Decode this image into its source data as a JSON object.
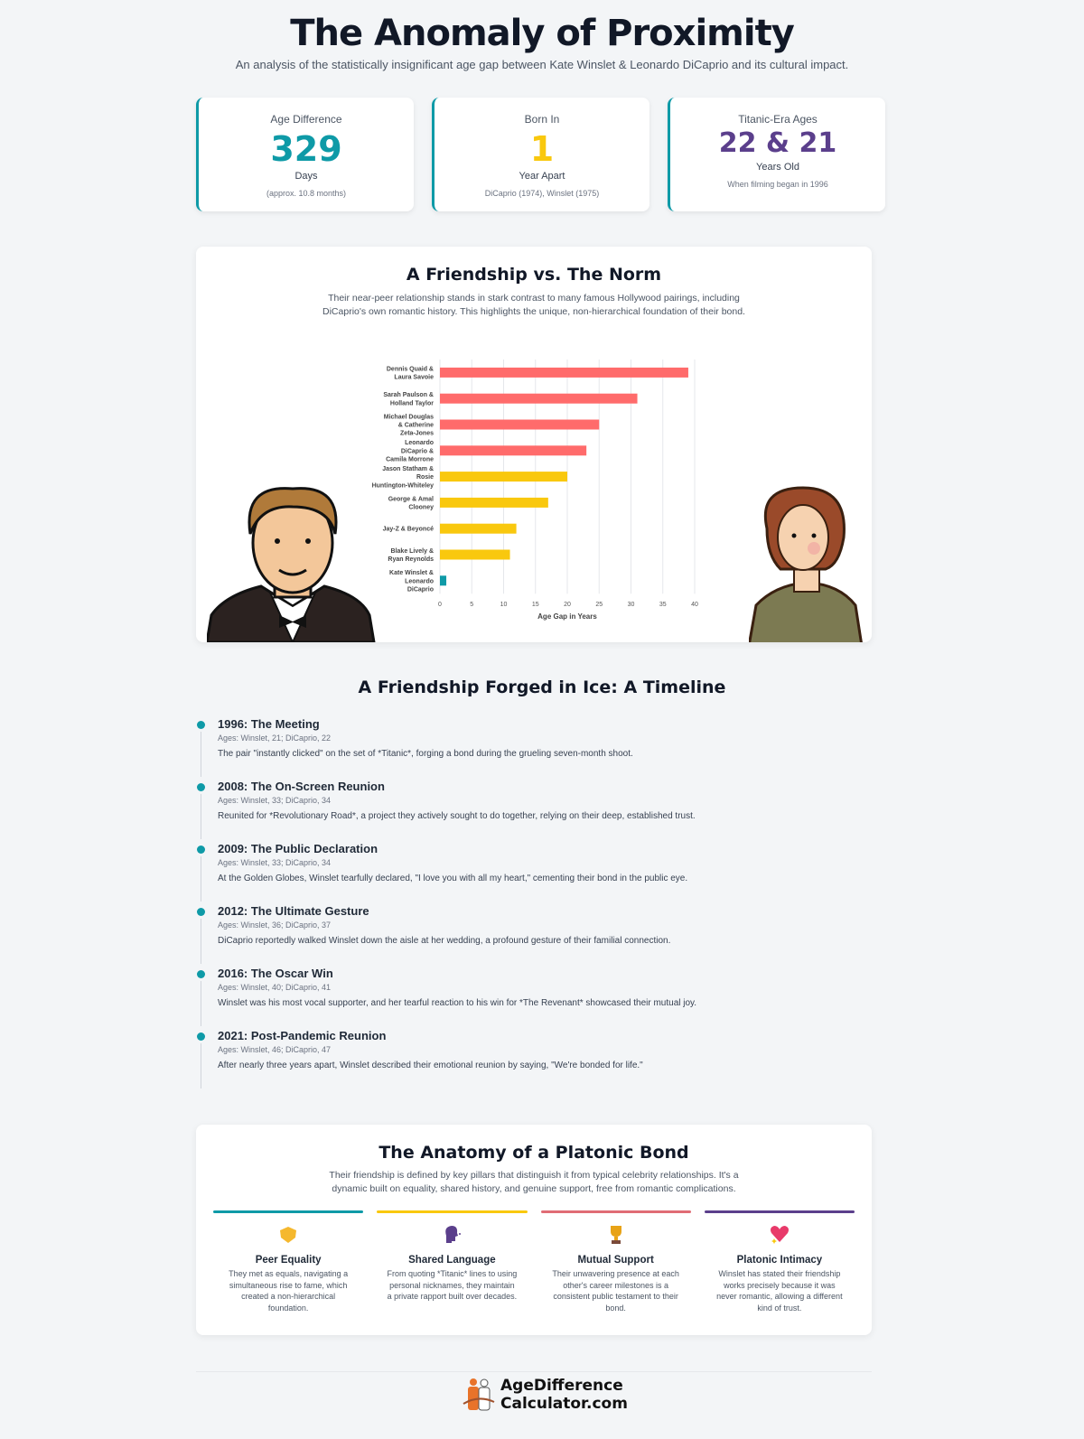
{
  "header": {
    "title": "The Anomaly of Proximity",
    "subtitle": "An analysis of the statistically insignificant age gap between Kate Winslet & Leonardo DiCaprio and its cultural impact."
  },
  "stats": [
    {
      "label": "Age Difference",
      "value": "329",
      "unit": "Days",
      "note": "(approx. 10.8 months)",
      "color": "#0e9aa7"
    },
    {
      "label": "Born In",
      "value": "1",
      "unit": "Year Apart",
      "note": "DiCaprio (1974), Winslet (1975)",
      "color": "#f9c80e"
    },
    {
      "label": "Titanic-Era Ages",
      "value": "22 & 21",
      "unit": "Years Old",
      "note": "When filming began in 1996",
      "color": "#5b3f8c"
    }
  ],
  "comparison": {
    "title": "A Friendship vs. The Norm",
    "description": "Their near-peer relationship stands in stark contrast to many famous Hollywood pairings, including DiCaprio's own romantic history. This highlights the unique, non-hierarchical foundation of their bond."
  },
  "chart_data": {
    "type": "bar",
    "orientation": "horizontal",
    "categories": [
      [
        "Dennis Quaid &",
        "Laura Savoie"
      ],
      [
        "Sarah Paulson &",
        "Holland Taylor"
      ],
      [
        "Michael Douglas",
        "& Catherine",
        "Zeta-Jones"
      ],
      [
        "Leonardo",
        "DiCaprio &",
        "Camila Morrone"
      ],
      [
        "Jason Statham &",
        "Rosie",
        "Huntington-Whiteley"
      ],
      [
        "George & Amal",
        "Clooney"
      ],
      [
        "Jay-Z & Beyoncé"
      ],
      [
        "Blake Lively &",
        "Ryan Reynolds"
      ],
      [
        "Kate Winslet &",
        "Leonardo",
        "DiCaprio"
      ]
    ],
    "values": [
      39,
      31,
      25,
      23,
      20,
      17,
      12,
      11,
      1
    ],
    "colors": [
      "#ff6b6b",
      "#ff6b6b",
      "#ff6b6b",
      "#ff6b6b",
      "#f9c80e",
      "#f9c80e",
      "#f9c80e",
      "#f9c80e",
      "#0e9aa7"
    ],
    "xlabel": "Age Gap in Years",
    "xlim": [
      0,
      40
    ],
    "xticks": [
      0,
      5,
      10,
      15,
      20,
      25,
      30,
      35,
      40
    ],
    "grid": true
  },
  "timeline": {
    "title": "A Friendship Forged in Ice: A Timeline",
    "items": [
      {
        "title": "1996: The Meeting",
        "ages": "Ages: Winslet, 21; DiCaprio, 22",
        "desc": "The pair \"instantly clicked\" on the set of *Titanic*, forging a bond during the grueling seven-month shoot."
      },
      {
        "title": "2008: The On-Screen Reunion",
        "ages": "Ages: Winslet, 33; DiCaprio, 34",
        "desc": "Reunited for *Revolutionary Road*, a project they actively sought to do together, relying on their deep, established trust."
      },
      {
        "title": "2009: The Public Declaration",
        "ages": "Ages: Winslet, 33; DiCaprio, 34",
        "desc": "At the Golden Globes, Winslet tearfully declared, \"I love you with all my heart,\" cementing their bond in the public eye."
      },
      {
        "title": "2012: The Ultimate Gesture",
        "ages": "Ages: Winslet, 36; DiCaprio, 37",
        "desc": "DiCaprio reportedly walked Winslet down the aisle at her wedding, a profound gesture of their familial connection."
      },
      {
        "title": "2016: The Oscar Win",
        "ages": "Ages: Winslet, 40; DiCaprio, 41",
        "desc": "Winslet was his most vocal supporter, and her tearful reaction to his win for *The Revenant* showcased their mutual joy."
      },
      {
        "title": "2021: Post-Pandemic Reunion",
        "ages": "Ages: Winslet, 46; DiCaprio, 47",
        "desc": "After nearly three years apart, Winslet described their emotional reunion by saying, \"We're bonded for life.\""
      }
    ]
  },
  "anatomy": {
    "title": "The Anatomy of a Platonic Bond",
    "description": "Their friendship is defined by key pillars that distinguish it from typical celebrity relationships. It's a dynamic built on equality, shared history, and genuine support, free from romantic complications.",
    "pillars": [
      {
        "title": "Peer Equality",
        "desc": "They met as equals, navigating a simultaneous rise to fame, which created a non-hierarchical foundation.",
        "color": "#0e9aa7",
        "icon": "handshake-icon"
      },
      {
        "title": "Shared Language",
        "desc": "From quoting *Titanic* lines to using personal nicknames, they maintain a private rapport built over decades.",
        "color": "#f9c80e",
        "icon": "speaking-head-icon"
      },
      {
        "title": "Mutual Support",
        "desc": "Their unwavering presence at each other's career milestones is a consistent public testament to their bond.",
        "color": "#e06c75",
        "icon": "trophy-icon"
      },
      {
        "title": "Platonic Intimacy",
        "desc": "Winslet has stated their friendship works precisely because it was never romantic, allowing a different kind of trust.",
        "color": "#5b3f8c",
        "icon": "sparkling-heart-icon"
      }
    ]
  },
  "footer": {
    "logo_line1": "AgeDifference",
    "logo_line2": "Calculator.com"
  }
}
